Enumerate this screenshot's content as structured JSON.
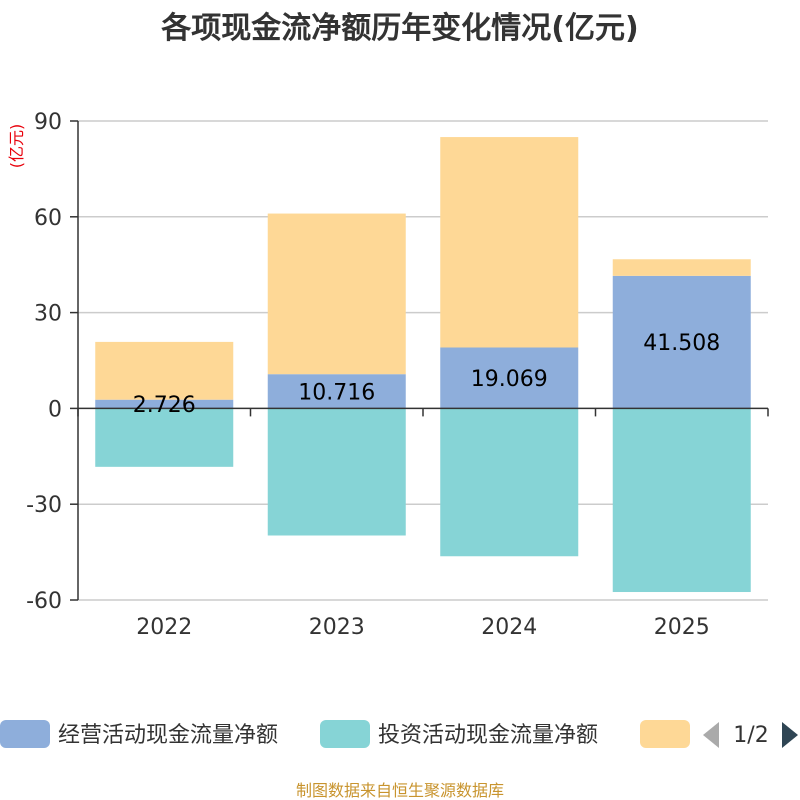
{
  "chart_data": {
    "type": "bar",
    "stacked": true,
    "title": "各项现金流净额历年变化情况(亿元)",
    "ylabel": "(亿元)",
    "xlabel": "",
    "categories": [
      "2022",
      "2023",
      "2024",
      "2025"
    ],
    "yticks": [
      90,
      60,
      30,
      0,
      -30,
      -60
    ],
    "ylim": [
      -60,
      90
    ],
    "grid": true,
    "series": [
      {
        "name": "经营活动现金流量净额",
        "color": "#8eaedb",
        "values": [
          2.726,
          10.716,
          19.069,
          41.508
        ],
        "labels": [
          "2.726",
          "10.716",
          "19.069",
          "41.508"
        ]
      },
      {
        "name": "投资活动现金流量净额",
        "color": "#86d4d6",
        "values": [
          -18.3,
          -39.8,
          -46.3,
          -57.5
        ]
      },
      {
        "name": "",
        "color": "#fed896",
        "values": [
          18.1,
          50.3,
          65.9,
          5.2
        ]
      }
    ],
    "legend": {
      "position": "bottom",
      "page_indicator": "1/2"
    },
    "source": "制图数据来自恒生聚源数据库"
  }
}
